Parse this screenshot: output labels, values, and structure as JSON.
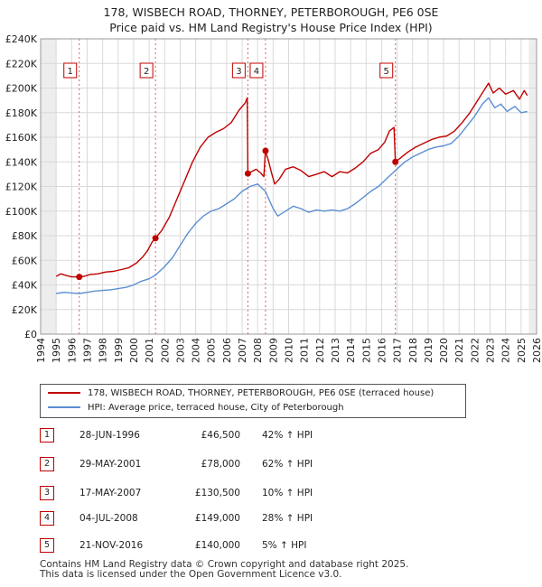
{
  "title_line1": "178, WISBECH ROAD, THORNEY, PETERBOROUGH, PE6 0SE",
  "title_line2": "Price paid vs. HM Land Registry's House Price Index (HPI)",
  "chart_data": {
    "type": "line",
    "title": "178, WISBECH ROAD, THORNEY, PETERBOROUGH, PE6 0SE — Price paid vs. HM Land Registry's House Price Index (HPI)",
    "xlabel": "",
    "ylabel": "",
    "xlim": [
      1994.0,
      2026.0
    ],
    "ylim": [
      0,
      240000
    ],
    "x_ticks": [
      1994,
      1995,
      1996,
      1997,
      1998,
      1999,
      2000,
      2001,
      2002,
      2003,
      2004,
      2005,
      2006,
      2007,
      2008,
      2009,
      2010,
      2011,
      2012,
      2013,
      2014,
      2015,
      2016,
      2017,
      2018,
      2019,
      2020,
      2021,
      2022,
      2023,
      2024,
      2025,
      2026
    ],
    "y_ticks": [
      {
        "value": 0,
        "label": "£0"
      },
      {
        "value": 20000,
        "label": "£20K"
      },
      {
        "value": 40000,
        "label": "£40K"
      },
      {
        "value": 60000,
        "label": "£60K"
      },
      {
        "value": 80000,
        "label": "£80K"
      },
      {
        "value": 100000,
        "label": "£100K"
      },
      {
        "value": 120000,
        "label": "£120K"
      },
      {
        "value": 140000,
        "label": "£140K"
      },
      {
        "value": 160000,
        "label": "£160K"
      },
      {
        "value": 180000,
        "label": "£180K"
      },
      {
        "value": 200000,
        "label": "£200K"
      },
      {
        "value": 220000,
        "label": "£220K"
      },
      {
        "value": 240000,
        "label": "£240K"
      }
    ],
    "grid": true,
    "series": [
      {
        "name": "178, WISBECH ROAD, THORNEY, PETERBOROUGH, PE6 0SE (terraced house)",
        "color": "#c00000",
        "points": [
          [
            1995.0,
            47000
          ],
          [
            1995.3,
            49000
          ],
          [
            1995.7,
            47500
          ],
          [
            1996.0,
            46500
          ],
          [
            1996.49,
            46500
          ],
          [
            1996.8,
            47000
          ],
          [
            1997.2,
            48500
          ],
          [
            1997.7,
            49000
          ],
          [
            1998.2,
            50500
          ],
          [
            1998.7,
            51000
          ],
          [
            1999.2,
            52500
          ],
          [
            1999.7,
            54000
          ],
          [
            2000.2,
            58000
          ],
          [
            2000.6,
            63000
          ],
          [
            2000.9,
            68000
          ],
          [
            2001.2,
            75000
          ],
          [
            2001.41,
            78000
          ],
          [
            2001.8,
            84000
          ],
          [
            2002.3,
            95000
          ],
          [
            2002.8,
            110000
          ],
          [
            2003.3,
            125000
          ],
          [
            2003.8,
            140000
          ],
          [
            2004.3,
            152000
          ],
          [
            2004.8,
            160000
          ],
          [
            2005.3,
            164000
          ],
          [
            2005.8,
            167000
          ],
          [
            2006.3,
            172000
          ],
          [
            2006.8,
            182000
          ],
          [
            2007.2,
            188000
          ],
          [
            2007.33,
            192000
          ],
          [
            2007.37,
            130500
          ],
          [
            2007.6,
            132000
          ],
          [
            2007.9,
            134000
          ],
          [
            2008.2,
            131000
          ],
          [
            2008.4,
            128000
          ],
          [
            2008.5,
            149000
          ],
          [
            2008.7,
            141000
          ],
          [
            2008.9,
            131000
          ],
          [
            2009.1,
            122000
          ],
          [
            2009.4,
            126000
          ],
          [
            2009.8,
            134000
          ],
          [
            2010.3,
            136000
          ],
          [
            2010.8,
            133000
          ],
          [
            2011.3,
            128000
          ],
          [
            2011.8,
            130000
          ],
          [
            2012.3,
            132000
          ],
          [
            2012.8,
            128000
          ],
          [
            2013.3,
            132000
          ],
          [
            2013.8,
            131000
          ],
          [
            2014.3,
            135000
          ],
          [
            2014.8,
            140000
          ],
          [
            2015.3,
            147000
          ],
          [
            2015.8,
            150000
          ],
          [
            2016.2,
            156000
          ],
          [
            2016.5,
            165000
          ],
          [
            2016.8,
            168000
          ],
          [
            2016.89,
            140000
          ],
          [
            2017.2,
            143000
          ],
          [
            2017.7,
            148000
          ],
          [
            2018.2,
            152000
          ],
          [
            2018.7,
            155000
          ],
          [
            2019.2,
            158000
          ],
          [
            2019.7,
            160000
          ],
          [
            2020.2,
            161000
          ],
          [
            2020.7,
            165000
          ],
          [
            2021.2,
            172000
          ],
          [
            2021.7,
            180000
          ],
          [
            2022.2,
            190000
          ],
          [
            2022.6,
            198000
          ],
          [
            2022.9,
            204000
          ],
          [
            2023.2,
            196000
          ],
          [
            2023.6,
            200000
          ],
          [
            2024.0,
            195000
          ],
          [
            2024.5,
            198000
          ],
          [
            2024.9,
            191000
          ],
          [
            2025.2,
            198000
          ],
          [
            2025.4,
            194000
          ]
        ]
      },
      {
        "name": "HPI: Average price, terraced house, City of Peterborough",
        "color": "#5b8fd1",
        "points": [
          [
            1995.0,
            33000
          ],
          [
            1995.5,
            34000
          ],
          [
            1996.0,
            33500
          ],
          [
            1996.5,
            33000
          ],
          [
            1997.0,
            34000
          ],
          [
            1997.5,
            35000
          ],
          [
            1998.0,
            35500
          ],
          [
            1998.5,
            36000
          ],
          [
            1999.0,
            37000
          ],
          [
            1999.5,
            38000
          ],
          [
            2000.0,
            40000
          ],
          [
            2000.5,
            43000
          ],
          [
            2001.0,
            45000
          ],
          [
            2001.41,
            48000
          ],
          [
            2002.0,
            55000
          ],
          [
            2002.5,
            62000
          ],
          [
            2003.0,
            72000
          ],
          [
            2003.5,
            82000
          ],
          [
            2004.0,
            90000
          ],
          [
            2004.5,
            96000
          ],
          [
            2005.0,
            100000
          ],
          [
            2005.5,
            102000
          ],
          [
            2006.0,
            106000
          ],
          [
            2006.5,
            110000
          ],
          [
            2007.0,
            116000
          ],
          [
            2007.5,
            120000
          ],
          [
            2008.0,
            122000
          ],
          [
            2008.5,
            116000
          ],
          [
            2009.0,
            102000
          ],
          [
            2009.3,
            96000
          ],
          [
            2009.8,
            100000
          ],
          [
            2010.3,
            104000
          ],
          [
            2010.8,
            102000
          ],
          [
            2011.3,
            99000
          ],
          [
            2011.8,
            101000
          ],
          [
            2012.3,
            100000
          ],
          [
            2012.8,
            101000
          ],
          [
            2013.3,
            100000
          ],
          [
            2013.8,
            102000
          ],
          [
            2014.3,
            106000
          ],
          [
            2014.8,
            111000
          ],
          [
            2015.3,
            116000
          ],
          [
            2015.8,
            120000
          ],
          [
            2016.3,
            126000
          ],
          [
            2016.89,
            133000
          ],
          [
            2017.5,
            140000
          ],
          [
            2018.0,
            144000
          ],
          [
            2018.5,
            147000
          ],
          [
            2019.0,
            150000
          ],
          [
            2019.5,
            152000
          ],
          [
            2020.0,
            153000
          ],
          [
            2020.5,
            155000
          ],
          [
            2021.0,
            161000
          ],
          [
            2021.5,
            169000
          ],
          [
            2022.0,
            177000
          ],
          [
            2022.5,
            187000
          ],
          [
            2022.9,
            192000
          ],
          [
            2023.3,
            184000
          ],
          [
            2023.7,
            187000
          ],
          [
            2024.1,
            181000
          ],
          [
            2024.6,
            185000
          ],
          [
            2025.0,
            180000
          ],
          [
            2025.4,
            181000
          ]
        ]
      }
    ],
    "markers": [
      {
        "id": "1",
        "x": 1996.49,
        "y": 46500
      },
      {
        "id": "2",
        "x": 2001.41,
        "y": 78000
      },
      {
        "id": "3",
        "x": 2007.37,
        "y": 130500
      },
      {
        "id": "4",
        "x": 2008.51,
        "y": 149000
      },
      {
        "id": "5",
        "x": 2016.89,
        "y": 140000
      }
    ],
    "shaded_ranges": [
      [
        1994.0,
        1995.0
      ],
      [
        2025.5,
        2026.0
      ]
    ]
  },
  "legend": {
    "property_label": "178, WISBECH ROAD, THORNEY, PETERBOROUGH, PE6 0SE (terraced house)",
    "hpi_label": "HPI: Average price, terraced house, City of Peterborough",
    "property_color": "#c00000",
    "hpi_color": "#5b8fd1"
  },
  "sales": [
    {
      "num": "1",
      "date": "28-JUN-1996",
      "price": "£46,500",
      "pct": "42% ↑ HPI"
    },
    {
      "num": "2",
      "date": "29-MAY-2001",
      "price": "£78,000",
      "pct": "62% ↑ HPI"
    },
    {
      "num": "3",
      "date": "17-MAY-2007",
      "price": "£130,500",
      "pct": "10% ↑ HPI"
    },
    {
      "num": "4",
      "date": "04-JUL-2008",
      "price": "£149,000",
      "pct": "28% ↑ HPI"
    },
    {
      "num": "5",
      "date": "21-NOV-2016",
      "price": "£140,000",
      "pct": "5% ↑ HPI"
    }
  ],
  "footer_line1": "Contains HM Land Registry data © Crown copyright and database right 2025.",
  "footer_line2": "This data is licensed under the Open Government Licence v3.0."
}
